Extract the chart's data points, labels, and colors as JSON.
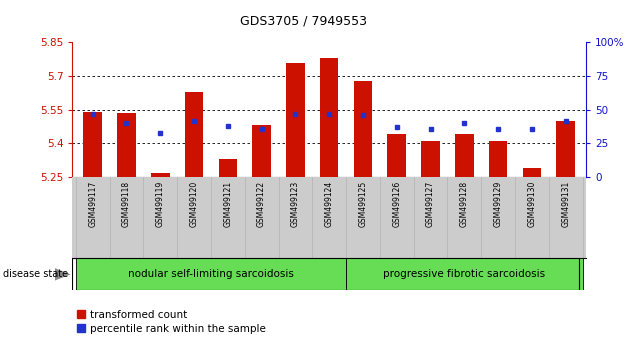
{
  "title": "GDS3705 / 7949553",
  "samples": [
    "GSM499117",
    "GSM499118",
    "GSM499119",
    "GSM499120",
    "GSM499121",
    "GSM499122",
    "GSM499123",
    "GSM499124",
    "GSM499125",
    "GSM499126",
    "GSM499127",
    "GSM499128",
    "GSM499129",
    "GSM499130",
    "GSM499131"
  ],
  "red_values": [
    5.54,
    5.535,
    5.27,
    5.63,
    5.33,
    5.48,
    5.76,
    5.78,
    5.68,
    5.44,
    5.41,
    5.44,
    5.41,
    5.29,
    5.5
  ],
  "blue_percentiles": [
    47,
    40,
    33,
    42,
    38,
    36,
    47,
    47,
    46,
    37,
    36,
    40,
    36,
    36,
    42
  ],
  "ymin": 5.25,
  "ymax": 5.85,
  "yticks": [
    5.25,
    5.4,
    5.55,
    5.7,
    5.85
  ],
  "ytick_labels": [
    "5.25",
    "5.4",
    "5.55",
    "5.7",
    "5.85"
  ],
  "right_yticks": [
    0,
    25,
    50,
    75,
    100
  ],
  "right_ytick_labels": [
    "0",
    "25",
    "50",
    "75",
    "100%"
  ],
  "grid_lines": [
    5.4,
    5.55,
    5.7
  ],
  "group1_label": "nodular self-limiting sarcoidosis",
  "group2_label": "progressive fibrotic sarcoidosis",
  "group1_indices": [
    0,
    7
  ],
  "group2_indices": [
    8,
    14
  ],
  "disease_label": "disease state",
  "legend1": "transformed count",
  "legend2": "percentile rank within the sample",
  "bar_color": "#cc1100",
  "dot_color": "#2233cc",
  "group_bg": "#66dd55",
  "tick_bg": "#cccccc",
  "bar_width": 0.55,
  "axis_color_left": "#cc1100",
  "axis_color_right": "#1111cc",
  "background_color": "#ffffff"
}
